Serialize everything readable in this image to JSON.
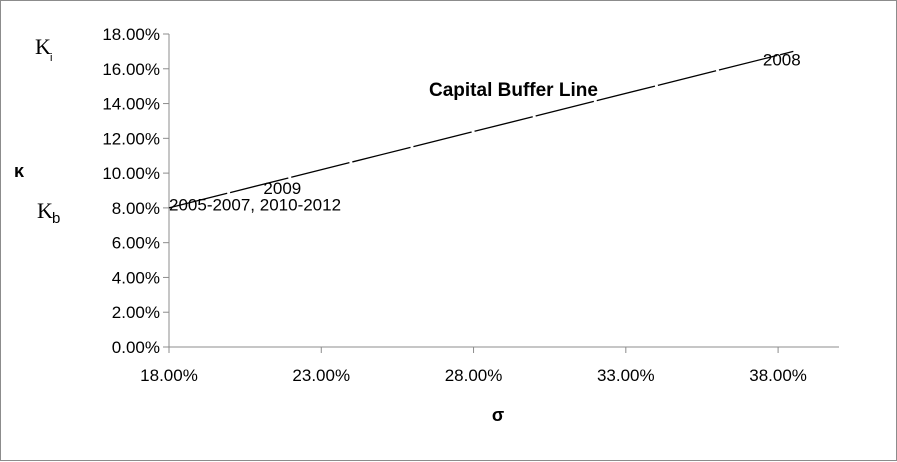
{
  "chart_data": {
    "type": "line",
    "title": "Capital Buffer Line",
    "xlabel": "σ",
    "ylabel": "κ",
    "xlim": [
      0.18,
      0.4
    ],
    "ylim": [
      0.0,
      0.18
    ],
    "x_ticks": [
      "18.00%",
      "23.00%",
      "28.00%",
      "33.00%",
      "38.00%"
    ],
    "x_tick_values": [
      0.18,
      0.23,
      0.28,
      0.33,
      0.38
    ],
    "y_ticks": [
      "0.00%",
      "2.00%",
      "4.00%",
      "6.00%",
      "8.00%",
      "10.00%",
      "12.00%",
      "14.00%",
      "16.00%",
      "18.00%"
    ],
    "y_tick_values": [
      0.0,
      0.02,
      0.04,
      0.06,
      0.08,
      0.1,
      0.12,
      0.14,
      0.16,
      0.18
    ],
    "series": [
      {
        "x": [
          0.18,
          0.385
        ],
        "y": [
          0.08,
          0.17
        ],
        "color": "#000000",
        "style": "dashed-long"
      }
    ],
    "annotations": [
      {
        "text": "2008",
        "x": 0.375,
        "y": 0.162
      },
      {
        "text": "2009",
        "x": 0.211,
        "y": 0.088
      },
      {
        "text": "2005-2007, 2010-2012",
        "x": 0.18,
        "y": 0.0785
      }
    ],
    "side_labels": {
      "ki_main": "K",
      "ki_sub": "i",
      "kb_main": "K",
      "kb_sub": "b"
    },
    "grid": false,
    "legend": "none"
  }
}
